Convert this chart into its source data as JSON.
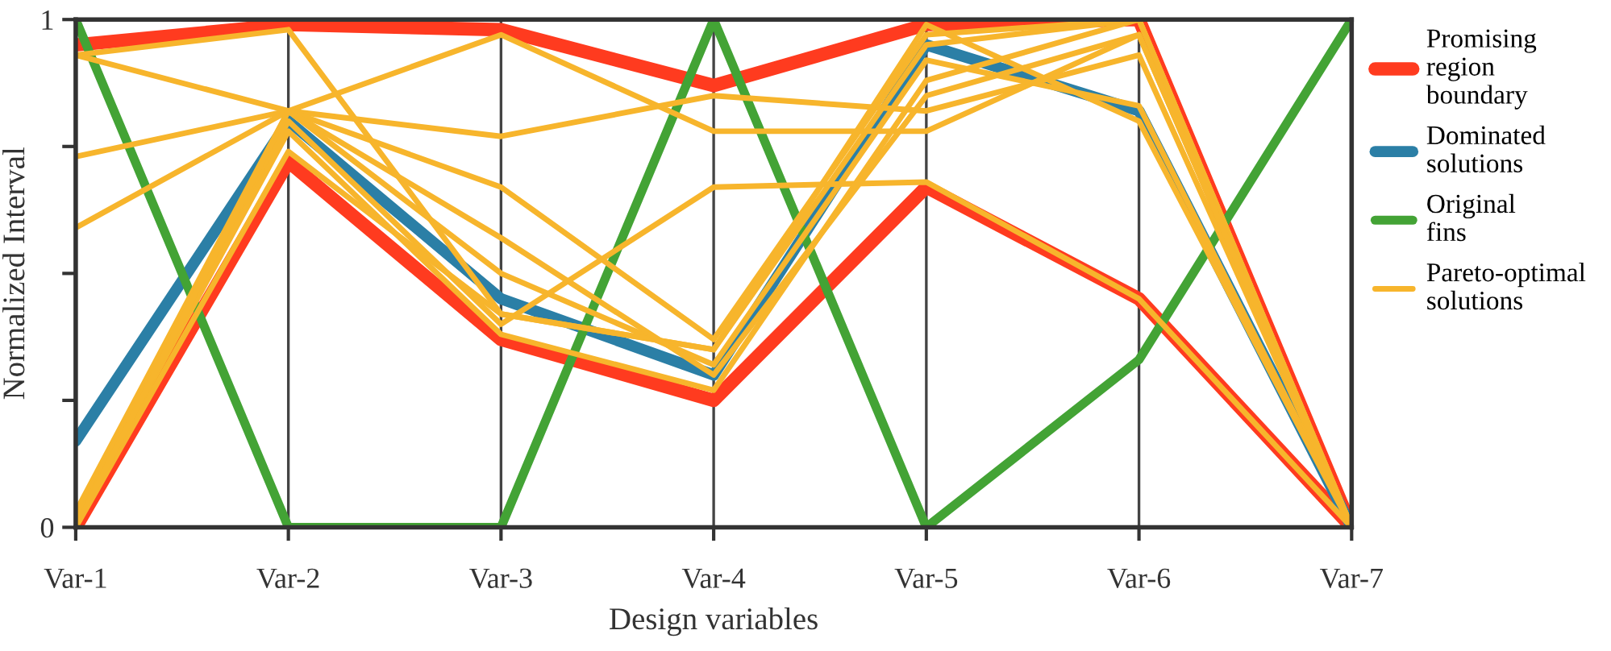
{
  "chart_data": {
    "type": "line",
    "xlabel": "Design variables",
    "ylabel": "Normalized Interval",
    "categories": [
      "Var-1",
      "Var-2",
      "Var-3",
      "Var-4",
      "Var-5",
      "Var-6",
      "Var-7"
    ],
    "ylim": [
      0,
      1
    ],
    "yticks": [
      0,
      {
        "value": 0.25,
        "label": null
      },
      {
        "value": 0.5,
        "label": null
      },
      {
        "value": 0.75,
        "label": null
      },
      1
    ],
    "grid": "x",
    "legend": "right",
    "series": [
      {
        "name": "Promising region boundary",
        "color": "#ff3b1f",
        "values": [
          0.95,
          0.99,
          0.98,
          0.87,
          0.99,
          1.0,
          0.0
        ]
      },
      {
        "color": "#ff3b1f",
        "values": [
          0.0,
          0.72,
          0.37,
          0.25,
          0.67,
          0.45,
          0.0
        ]
      },
      {
        "name": "Dominated solutions",
        "color": "#2b7fa6",
        "values": [
          0.17,
          0.8,
          0.45,
          0.3,
          0.95,
          0.82,
          0.0
        ]
      },
      {
        "name": "Original fins",
        "color": "#43a335",
        "values": [
          1.0,
          0.0,
          0.0,
          1.0,
          0.0,
          0.33,
          1.0
        ]
      },
      {
        "name": "Pareto-optimal solutions",
        "color": "#f7b52c",
        "values": [
          0.93,
          0.98,
          0.42,
          0.35,
          0.95,
          1.0,
          0.0
        ]
      },
      {
        "color": "#f7b52c",
        "values": [
          0.93,
          0.82,
          0.97,
          0.78,
          0.78,
          0.97,
          0.0
        ]
      },
      {
        "color": "#f7b52c",
        "values": [
          0.73,
          0.82,
          0.77,
          0.85,
          0.82,
          0.93,
          0.0
        ]
      },
      {
        "color": "#f7b52c",
        "values": [
          0.59,
          0.82,
          0.67,
          0.37,
          0.97,
          1.0,
          0.0
        ]
      },
      {
        "color": "#f7b52c",
        "values": [
          0.03,
          0.82,
          0.5,
          0.32,
          0.92,
          0.83,
          0.0
        ]
      },
      {
        "color": "#f7b52c",
        "values": [
          0.02,
          0.8,
          0.4,
          0.67,
          0.68,
          0.45,
          0.0
        ]
      },
      {
        "color": "#f7b52c",
        "values": [
          0.01,
          0.78,
          0.38,
          0.27,
          0.88,
          1.0,
          0.0
        ]
      },
      {
        "color": "#f7b52c",
        "values": [
          0.0,
          0.74,
          0.42,
          0.35,
          0.99,
          0.8,
          0.0
        ]
      },
      {
        "color": "#f7b52c",
        "values": [
          0.0,
          0.82,
          0.57,
          0.3,
          0.85,
          0.97,
          0.0
        ]
      }
    ]
  }
}
